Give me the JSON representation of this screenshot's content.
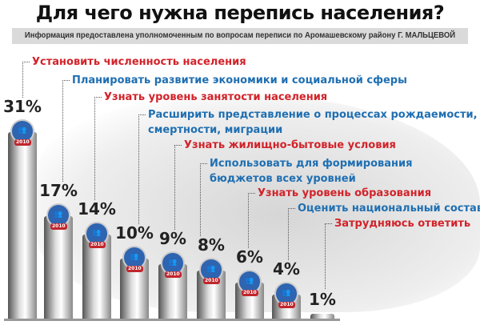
{
  "chart_data": {
    "type": "bar",
    "title": "Для чего нужна перепись населения?",
    "subtitle": "Информация предоставлена уполномоченным по вопросам переписи по Аромашевскому району Г. МАЛЬЦЕВОЙ",
    "categories": [
      "Установить численность населения",
      "Планировать развитие экономики и социальной сферы",
      "Узнать уровень занятости населения",
      "Расширить представление о процессах рождаемости,\nсмертности, миграции",
      "Узнать жилищно-бытовые условия",
      "Использовать для формирования\nбюджетов всех уровней",
      "Узнать уровень образования",
      "Оценить национальный состав",
      "Затрудняюсь ответить"
    ],
    "values": [
      31,
      17,
      14,
      10,
      9,
      8,
      6,
      4,
      1
    ],
    "value_labels": [
      "31%",
      "17%",
      "14%",
      "10%",
      "9%",
      "8%",
      "6%",
      "4%",
      "1%"
    ],
    "label_colors": [
      "#d2232a",
      "#1f6fb2",
      "#d2232a",
      "#1f6fb2",
      "#d2232a",
      "#1f6fb2",
      "#d2232a",
      "#1f6fb2",
      "#d2232a"
    ],
    "logo_text": "2010",
    "ylim": [
      0,
      31
    ]
  }
}
